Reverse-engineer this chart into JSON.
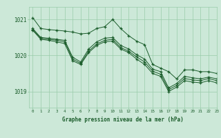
{
  "bg_color": "#cce8d8",
  "grid_color": "#99ccaa",
  "line_color": "#1a5c2a",
  "xlabel": "Graphe pression niveau de la mer (hPa)",
  "xlabel_color": "#1a5c2a",
  "ylabel_ticks": [
    1019,
    1020,
    1021
  ],
  "xlim": [
    -0.5,
    23
  ],
  "ylim": [
    1018.55,
    1021.35
  ],
  "series": [
    [
      1021.05,
      1020.75,
      1020.72,
      1020.7,
      1020.68,
      1020.65,
      1020.6,
      1020.62,
      1020.75,
      1020.8,
      1021.0,
      1020.75,
      1020.55,
      1020.4,
      1020.3,
      1019.75,
      1019.65,
      1019.55,
      1019.35,
      1019.6,
      1019.6,
      1019.55,
      1019.55,
      1019.5
    ],
    [
      1020.75,
      1020.5,
      1020.48,
      1020.45,
      1020.42,
      1019.95,
      1019.82,
      1020.18,
      1020.38,
      1020.48,
      1020.5,
      1020.28,
      1020.18,
      1020.02,
      1019.9,
      1019.62,
      1019.55,
      1019.1,
      1019.22,
      1019.42,
      1019.38,
      1019.35,
      1019.4,
      1019.35
    ],
    [
      1020.72,
      1020.48,
      1020.45,
      1020.42,
      1020.38,
      1019.9,
      1019.78,
      1020.12,
      1020.32,
      1020.42,
      1020.45,
      1020.22,
      1020.12,
      1019.96,
      1019.82,
      1019.56,
      1019.48,
      1019.05,
      1019.17,
      1019.36,
      1019.32,
      1019.3,
      1019.36,
      1019.3
    ],
    [
      1020.7,
      1020.45,
      1020.42,
      1020.38,
      1020.33,
      1019.85,
      1019.75,
      1020.08,
      1020.28,
      1020.38,
      1020.4,
      1020.18,
      1020.08,
      1019.9,
      1019.75,
      1019.5,
      1019.42,
      1019.0,
      1019.12,
      1019.3,
      1019.26,
      1019.24,
      1019.3,
      1019.24
    ]
  ]
}
